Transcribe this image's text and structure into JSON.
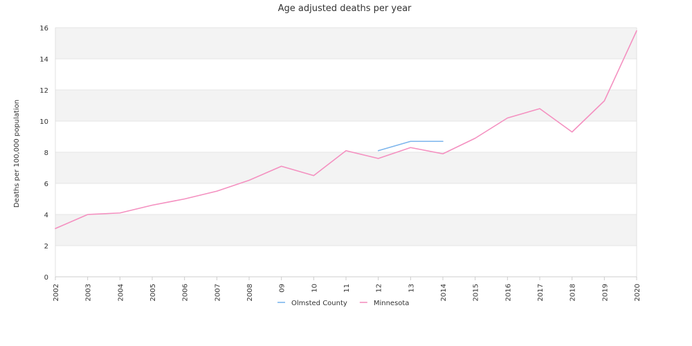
{
  "chart_data": {
    "type": "line",
    "title": "Age adjusted deaths per year",
    "xlabel": "",
    "ylabel": "Deaths per 100,000 population",
    "ylim": [
      0,
      16
    ],
    "yticks": [
      "0",
      "2",
      "4",
      "6",
      "8",
      "10",
      "12",
      "14",
      "16"
    ],
    "categories": [
      "2002",
      "2003",
      "2004",
      "2005",
      "2006",
      "2007",
      "2008",
      "09",
      "10",
      "11",
      "12",
      "13",
      "2014",
      "2015",
      "2016",
      "2017",
      "2018",
      "2019",
      "2020"
    ],
    "grid": true,
    "legend_position": "bottom",
    "series": [
      {
        "name": "Olmsted County",
        "color": "#7cb5ec",
        "values": [
          null,
          null,
          null,
          null,
          null,
          null,
          null,
          null,
          null,
          null,
          8.1,
          8.7,
          8.7,
          null,
          null,
          null,
          null,
          null,
          null
        ]
      },
      {
        "name": "Minnesota",
        "color": "#f490c0",
        "values": [
          3.1,
          4.0,
          4.1,
          4.6,
          5.0,
          5.5,
          6.2,
          7.1,
          6.5,
          8.1,
          7.6,
          8.3,
          7.9,
          8.9,
          10.2,
          10.8,
          9.3,
          11.3,
          15.8
        ]
      }
    ],
    "band_colors": [
      "#ffffff",
      "#f3f3f3"
    ]
  }
}
